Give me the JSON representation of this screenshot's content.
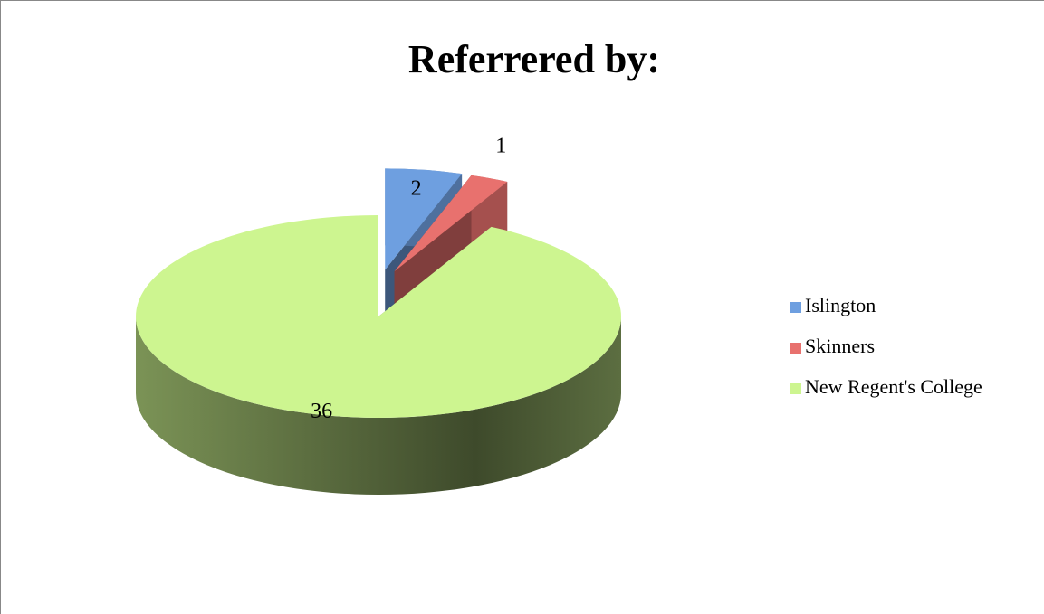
{
  "chart_data": {
    "type": "pie",
    "title": "Referrered by:",
    "categories": [
      "Islington",
      "Skinners",
      "New Regent's College"
    ],
    "values": [
      2,
      1,
      36
    ],
    "colors": [
      "#6e9fe0",
      "#e8716e",
      "#cdf590"
    ],
    "exploded": [
      true,
      true,
      false
    ],
    "legend": "right"
  }
}
